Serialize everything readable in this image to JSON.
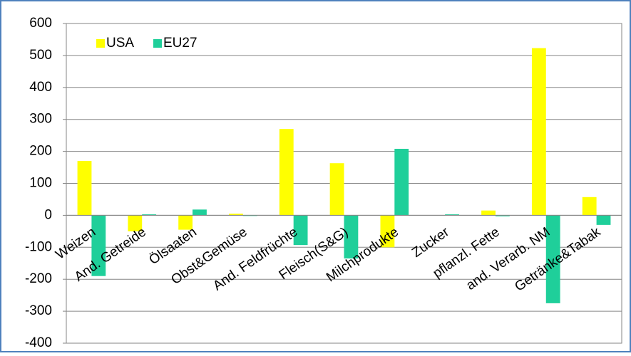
{
  "chart_data": {
    "type": "bar",
    "categories": [
      "Weizen",
      "And. Getreide",
      "Ölsaaten",
      "Obst&Gemüse",
      "And. Feldfrüchte",
      "Fleisch(S&G)",
      "Milchprodukte",
      "Zucker",
      "pflanzl. Fette",
      "and. Verarb. NM",
      "Getränke&Tabak"
    ],
    "series": [
      {
        "name": "USA",
        "color": "#ffff00",
        "values": [
          170,
          -50,
          -45,
          5,
          270,
          163,
          -100,
          0,
          15,
          523,
          57
        ]
      },
      {
        "name": "EU27",
        "color": "#1fcf9a",
        "values": [
          -190,
          3,
          18,
          -2,
          -93,
          -135,
          208,
          3,
          -3,
          -275,
          -30
        ]
      }
    ],
    "ylim": [
      -400,
      600
    ],
    "yticks": [
      -400,
      -300,
      -200,
      -100,
      0,
      100,
      200,
      300,
      400,
      500,
      600
    ],
    "grid": true,
    "legend": "top-left"
  }
}
